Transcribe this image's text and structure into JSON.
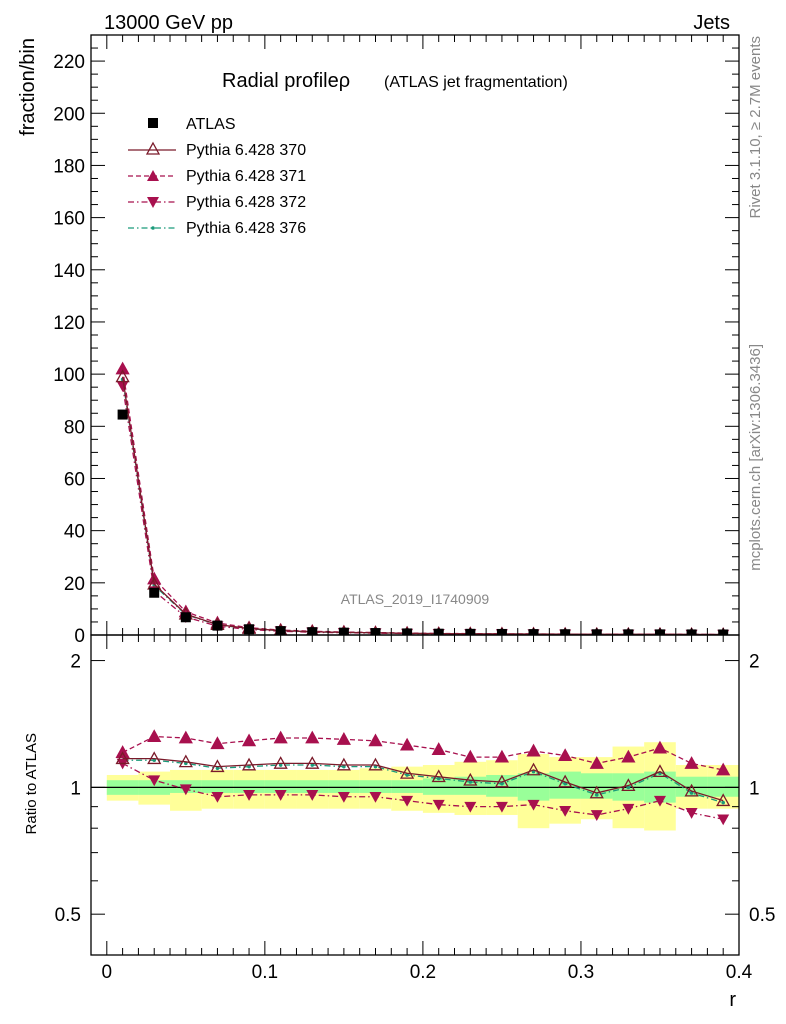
{
  "header": {
    "left_label": "13000 GeV pp",
    "right_label": "Jets"
  },
  "side_labels": {
    "rivet": "Rivet 3.1.10, ≥ 2.7M events",
    "mcplots": "mcplots.cern.ch [arXiv:1306.3436]"
  },
  "watermark": "ATLAS_2019_I1740909",
  "colors": {
    "pythia370": "#7a1a2a",
    "pythia371": "#a8104e",
    "pythia372": "#a8104e",
    "pythia376": "#1a9a7a",
    "band_inner": "#99ff99",
    "band_outer": "#ffff99"
  },
  "chart_data": [
    {
      "type": "line",
      "title": "Radial profileρ",
      "subtitle": "(ATLAS jet fragmentation)",
      "xlabel": "",
      "ylabel": "fraction/bin",
      "xlim": [
        -0.01,
        0.4
      ],
      "ylim": [
        0,
        230
      ],
      "yticks": [
        0,
        20,
        40,
        60,
        80,
        100,
        120,
        140,
        160,
        180,
        200,
        220
      ],
      "legend_position": "top-left",
      "x": [
        0.01,
        0.03,
        0.05,
        0.07,
        0.09,
        0.11,
        0.13,
        0.15,
        0.17,
        0.19,
        0.21,
        0.23,
        0.25,
        0.27,
        0.29,
        0.31,
        0.33,
        0.35,
        0.37,
        0.39
      ],
      "series": [
        {
          "name": "ATLAS",
          "marker": "square",
          "values": [
            84.5,
            16.2,
            6.8,
            3.6,
            2.2,
            1.5,
            1.1,
            0.9,
            0.75,
            0.6,
            0.5,
            0.45,
            0.4,
            0.35,
            0.3,
            0.28,
            0.26,
            0.24,
            0.22,
            0.2
          ]
        },
        {
          "name": "Pythia 6.428 370",
          "marker": "triangle-up-open",
          "line": "solid",
          "values": [
            99.0,
            19.5,
            8.0,
            4.0,
            2.5,
            1.7,
            1.25,
            1.0,
            0.85,
            0.65,
            0.53,
            0.47,
            0.41,
            0.38,
            0.31,
            0.27,
            0.26,
            0.26,
            0.21,
            0.19
          ]
        },
        {
          "name": "Pythia 6.428 371",
          "marker": "triangle-up",
          "line": "dashed",
          "values": [
            102.0,
            21.5,
            8.9,
            4.6,
            2.8,
            1.9,
            1.45,
            1.15,
            0.95,
            0.75,
            0.6,
            0.52,
            0.45,
            0.41,
            0.35,
            0.31,
            0.3,
            0.3,
            0.24,
            0.21
          ]
        },
        {
          "name": "Pythia 6.428 372",
          "marker": "triangle-down",
          "line": "dashdot",
          "values": [
            95.5,
            16.8,
            6.9,
            3.4,
            2.1,
            1.45,
            1.05,
            0.85,
            0.7,
            0.55,
            0.46,
            0.4,
            0.36,
            0.31,
            0.26,
            0.24,
            0.23,
            0.22,
            0.19,
            0.17
          ]
        },
        {
          "name": "Pythia 6.428 376",
          "marker": "dot",
          "line": "dashdot",
          "values": [
            98.0,
            19.0,
            7.8,
            3.9,
            2.4,
            1.65,
            1.2,
            0.97,
            0.82,
            0.63,
            0.51,
            0.46,
            0.4,
            0.37,
            0.3,
            0.26,
            0.25,
            0.25,
            0.21,
            0.19
          ]
        }
      ]
    },
    {
      "type": "line",
      "xlabel": "r",
      "ylabel": "Ratio to ATLAS",
      "xlim": [
        -0.01,
        0.4
      ],
      "ylim": [
        0.4,
        2.3
      ],
      "yscale": "log",
      "yticks": [
        0.5,
        1,
        2
      ],
      "xticks": [
        0,
        0.1,
        0.2,
        0.3,
        0.4
      ],
      "x": [
        0.01,
        0.03,
        0.05,
        0.07,
        0.09,
        0.11,
        0.13,
        0.15,
        0.17,
        0.19,
        0.21,
        0.23,
        0.25,
        0.27,
        0.29,
        0.31,
        0.33,
        0.35,
        0.37,
        0.39
      ],
      "bands": {
        "inner_low": [
          0.96,
          0.96,
          0.97,
          0.97,
          0.97,
          0.97,
          0.97,
          0.97,
          0.97,
          0.97,
          0.96,
          0.96,
          0.95,
          0.93,
          0.94,
          0.94,
          0.93,
          0.92,
          0.95,
          0.95
        ],
        "inner_high": [
          1.04,
          1.04,
          1.04,
          1.04,
          1.04,
          1.04,
          1.04,
          1.04,
          1.04,
          1.04,
          1.05,
          1.06,
          1.07,
          1.08,
          1.09,
          1.08,
          1.08,
          1.09,
          1.06,
          1.06
        ],
        "outer_low": [
          0.93,
          0.91,
          0.88,
          0.89,
          0.89,
          0.89,
          0.89,
          0.89,
          0.89,
          0.88,
          0.87,
          0.86,
          0.86,
          0.8,
          0.82,
          0.84,
          0.8,
          0.79,
          0.89,
          0.89
        ],
        "outer_high": [
          1.07,
          1.09,
          1.1,
          1.1,
          1.1,
          1.1,
          1.1,
          1.1,
          1.11,
          1.12,
          1.13,
          1.15,
          1.16,
          1.2,
          1.18,
          1.18,
          1.25,
          1.28,
          1.13,
          1.13
        ]
      },
      "series": [
        {
          "name": "Pythia 6.428 370",
          "values": [
            1.17,
            1.17,
            1.15,
            1.12,
            1.13,
            1.14,
            1.14,
            1.13,
            1.13,
            1.08,
            1.06,
            1.04,
            1.03,
            1.1,
            1.03,
            0.97,
            1.01,
            1.09,
            0.98,
            0.93
          ]
        },
        {
          "name": "Pythia 6.428 371",
          "values": [
            1.21,
            1.32,
            1.31,
            1.27,
            1.29,
            1.31,
            1.31,
            1.3,
            1.29,
            1.26,
            1.23,
            1.18,
            1.18,
            1.22,
            1.19,
            1.14,
            1.18,
            1.24,
            1.14,
            1.1
          ]
        },
        {
          "name": "Pythia 6.428 372",
          "values": [
            1.14,
            1.04,
            0.99,
            0.95,
            0.96,
            0.96,
            0.96,
            0.95,
            0.95,
            0.93,
            0.91,
            0.9,
            0.9,
            0.91,
            0.88,
            0.86,
            0.89,
            0.93,
            0.87,
            0.84
          ]
        },
        {
          "name": "Pythia 6.428 376",
          "values": [
            1.16,
            1.16,
            1.14,
            1.11,
            1.12,
            1.13,
            1.13,
            1.12,
            1.12,
            1.07,
            1.05,
            1.03,
            1.02,
            1.09,
            1.02,
            0.96,
            1.0,
            1.08,
            0.97,
            0.92
          ]
        }
      ]
    }
  ]
}
